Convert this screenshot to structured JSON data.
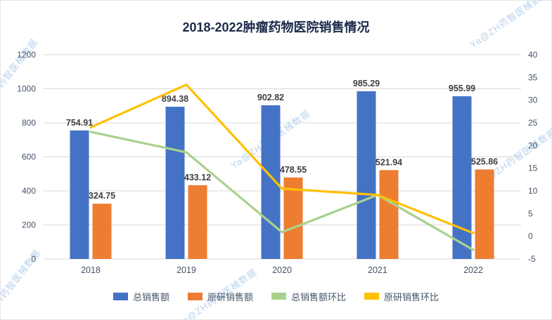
{
  "watermark": {
    "text": "Ya@ZH药智医械数据"
  },
  "chart_data": {
    "type": "combo",
    "title": "2018-2022肿瘤药物医院销售情况",
    "categories": [
      "2018",
      "2019",
      "2020",
      "2021",
      "2022"
    ],
    "series": [
      {
        "name": "总销售额",
        "type": "bar",
        "axis": "left",
        "color": "#4472C4",
        "values": [
          754.91,
          894.38,
          902.82,
          985.29,
          955.99
        ],
        "labels": true
      },
      {
        "name": "原研销售额",
        "type": "bar",
        "axis": "left",
        "color": "#ED7D31",
        "values": [
          324.75,
          433.12,
          478.55,
          521.94,
          525.86
        ],
        "labels": true
      },
      {
        "name": "总销售额环比",
        "type": "line",
        "axis": "right",
        "color": "#A9D18E",
        "values": [
          23,
          18.5,
          0.9,
          9.1,
          -3.0
        ],
        "labels": false
      },
      {
        "name": "原研销售环比",
        "type": "line",
        "axis": "right",
        "color": "#FFC000",
        "values": [
          24,
          33.4,
          10.5,
          9.1,
          0.7
        ],
        "labels": false
      }
    ],
    "left_axis": {
      "min": 0,
      "max": 1200,
      "ticks": [
        0,
        200,
        400,
        600,
        800,
        1000,
        1200
      ]
    },
    "right_axis": {
      "min": -5,
      "max": 40,
      "ticks": [
        -5,
        0,
        5,
        10,
        15,
        20,
        25,
        30,
        35,
        40
      ]
    },
    "grid": true,
    "legend_position": "bottom",
    "colors": {
      "grid": "#d9d9d9",
      "axis_label": "#44546A",
      "data_label": "#404040",
      "title": "#1c2b4a",
      "watermark": "#7DACDF"
    }
  }
}
